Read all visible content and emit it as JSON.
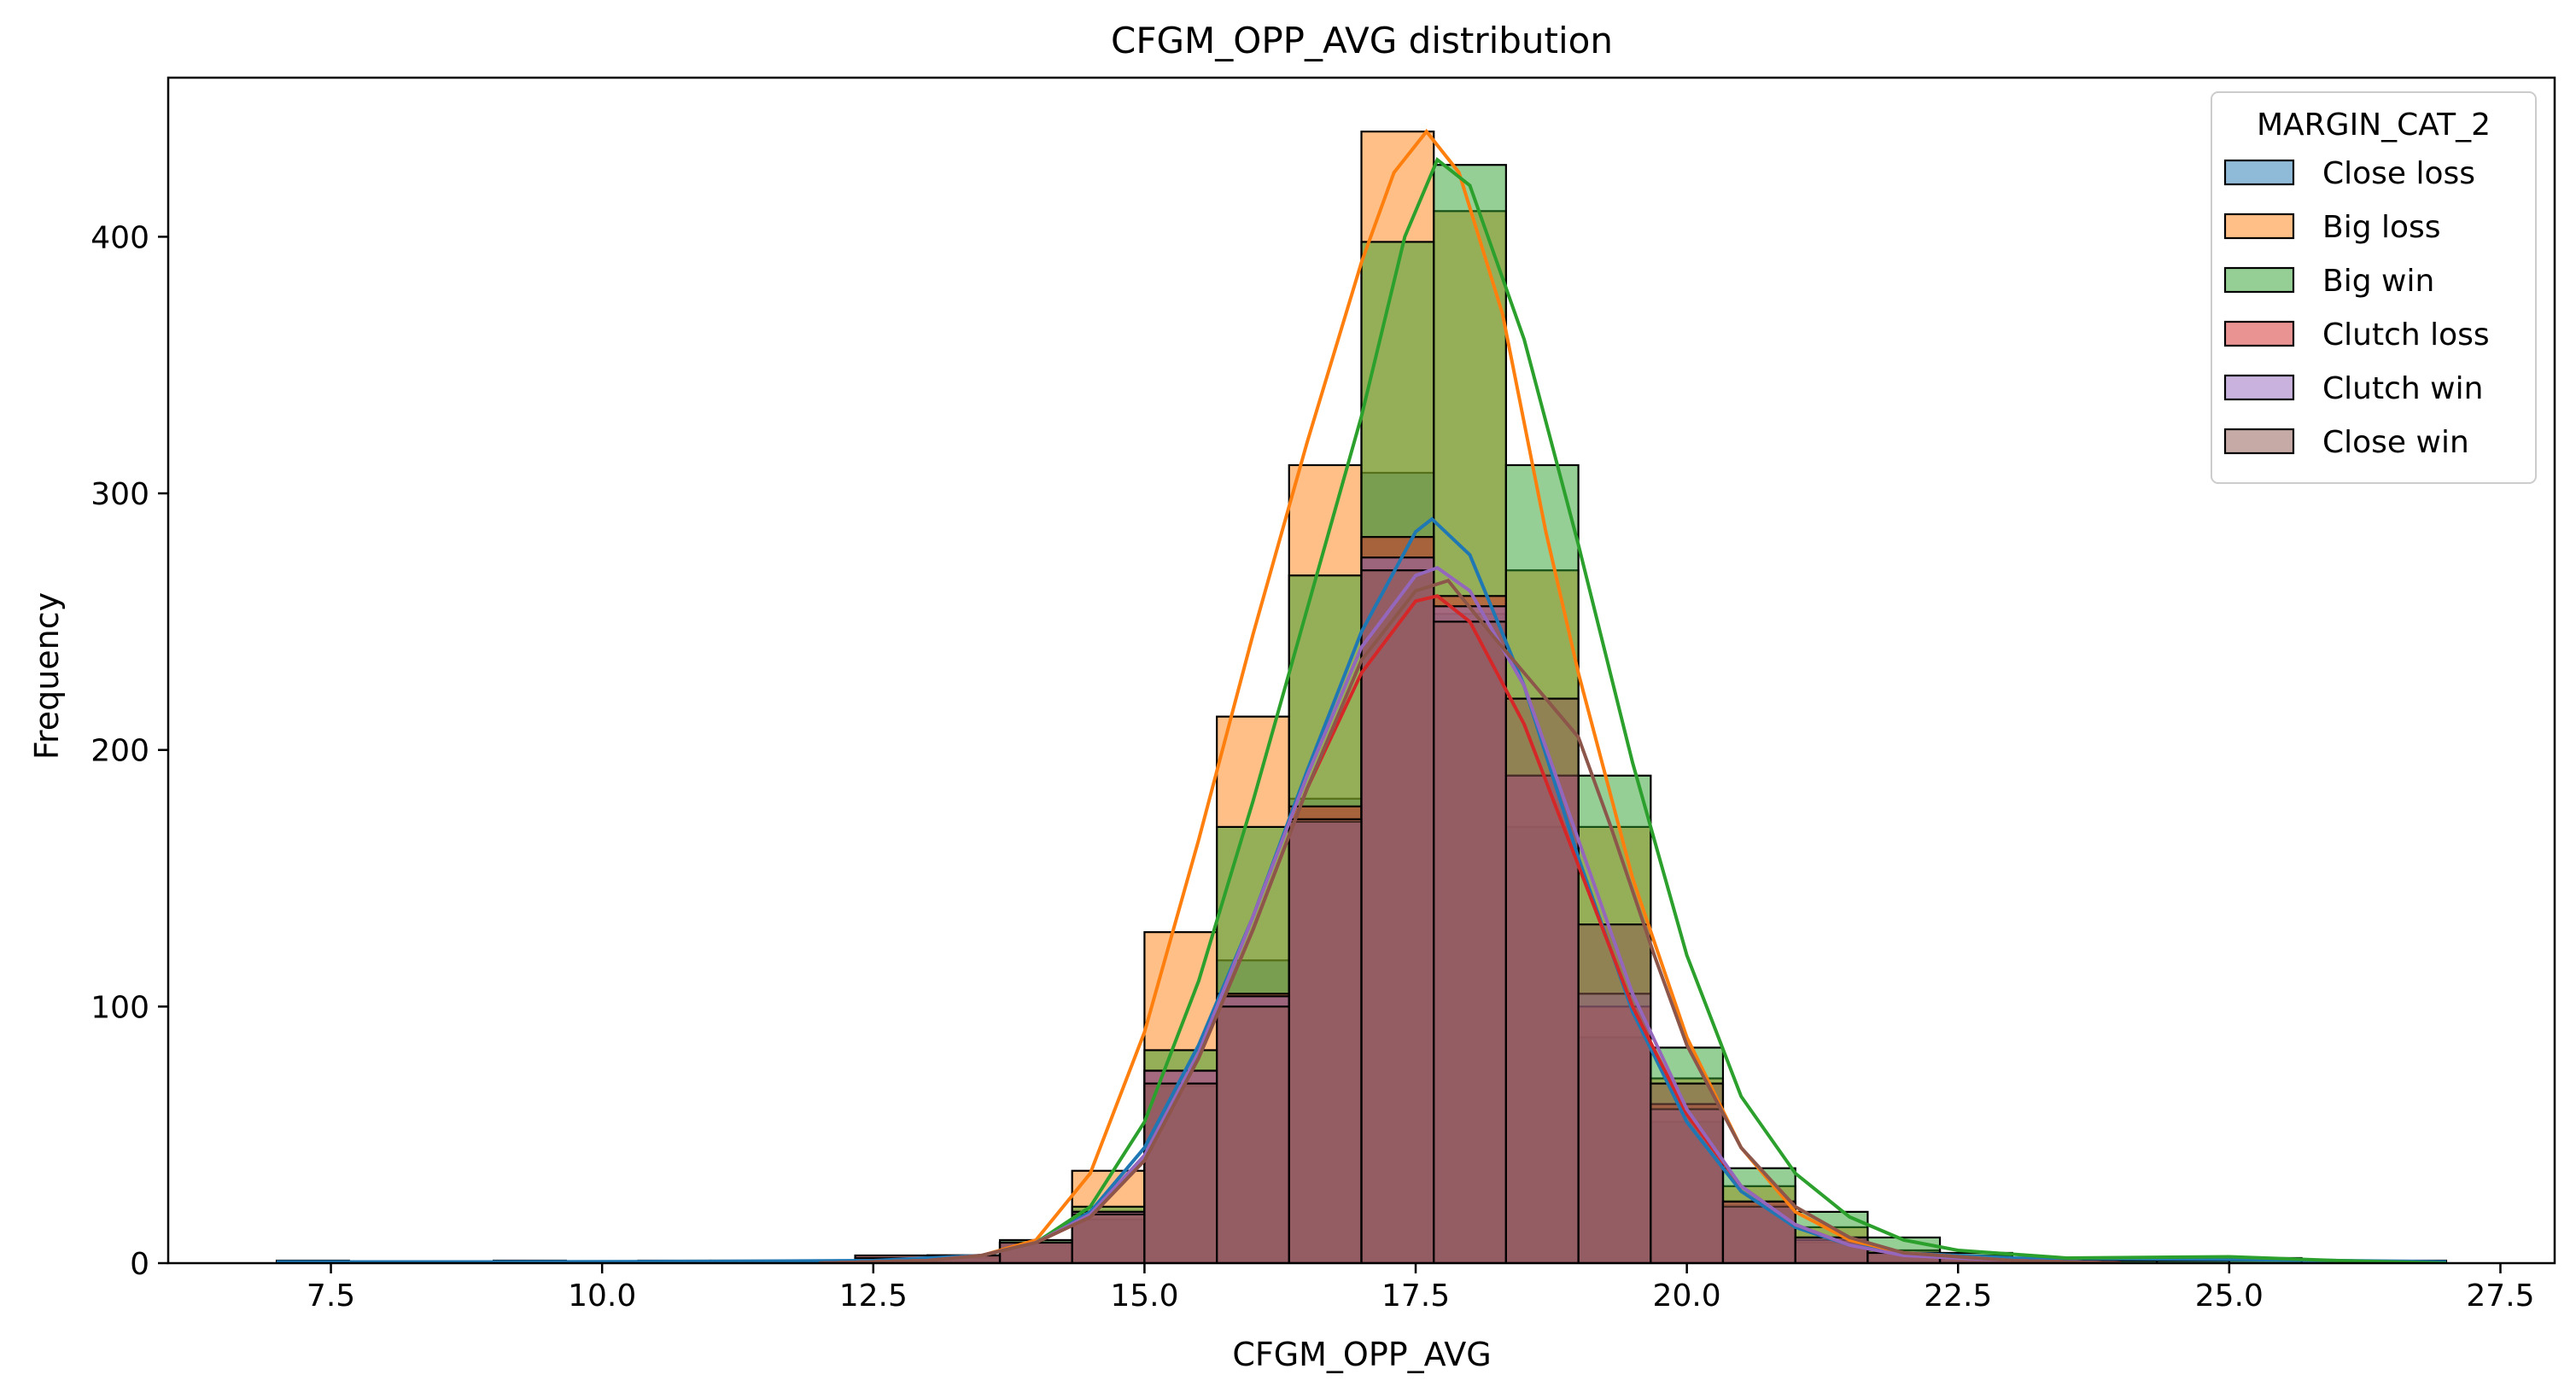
{
  "chart_data": {
    "type": "histogram",
    "title": "CFGM_OPP_AVG distribution",
    "xlabel": "CFGM_OPP_AVG",
    "ylabel": "Frequency",
    "xlim": [
      6.0,
      28.0
    ],
    "ylim": [
      0,
      462
    ],
    "xticks": [
      7.5,
      10.0,
      12.5,
      15.0,
      17.5,
      20.0,
      22.5,
      25.0,
      27.5
    ],
    "xtick_labels": [
      "7.5",
      "10.0",
      "12.5",
      "15.0",
      "17.5",
      "20.0",
      "22.5",
      "25.0",
      "27.5"
    ],
    "yticks": [
      0,
      100,
      200,
      300,
      400
    ],
    "ytick_labels": [
      "0",
      "100",
      "200",
      "300",
      "400"
    ],
    "grid": false,
    "legend": {
      "title": "MARGIN_CAT_2",
      "placement": "top-right"
    },
    "bins": [
      [
        7.0,
        7.667
      ],
      [
        7.667,
        8.333
      ],
      [
        8.333,
        9.0
      ],
      [
        9.0,
        9.667
      ],
      [
        9.667,
        10.333
      ],
      [
        10.333,
        11.0
      ],
      [
        11.0,
        11.667
      ],
      [
        11.667,
        12.333
      ],
      [
        12.333,
        13.0
      ],
      [
        13.0,
        13.667
      ],
      [
        13.667,
        14.333
      ],
      [
        14.333,
        15.0
      ],
      [
        15.0,
        15.667
      ],
      [
        15.667,
        16.333
      ],
      [
        16.333,
        17.0
      ],
      [
        17.0,
        17.667
      ],
      [
        17.667,
        18.333
      ],
      [
        18.333,
        19.0
      ],
      [
        19.0,
        19.667
      ],
      [
        19.667,
        20.333
      ],
      [
        20.333,
        21.0
      ],
      [
        21.0,
        21.667
      ],
      [
        21.667,
        22.333
      ],
      [
        22.333,
        23.0
      ],
      [
        23.0,
        23.667
      ],
      [
        23.667,
        24.333
      ],
      [
        24.333,
        25.0
      ],
      [
        25.0,
        25.667
      ],
      [
        25.667,
        26.333
      ],
      [
        26.333,
        27.0
      ]
    ],
    "series": [
      {
        "name": "Close loss",
        "color": "#1f77b4",
        "values": [
          1,
          0,
          0,
          1,
          0,
          1,
          1,
          1,
          1,
          2,
          8,
          17,
          69,
          118,
          181,
          308,
          253,
          170,
          88,
          55,
          22,
          8,
          4,
          2,
          1,
          1,
          1,
          1,
          1,
          1
        ],
        "kde": [
          [
            7,
            0.5
          ],
          [
            9,
            0.5
          ],
          [
            11,
            0.7
          ],
          [
            12.5,
            1
          ],
          [
            13.5,
            3
          ],
          [
            14,
            8
          ],
          [
            14.5,
            20
          ],
          [
            15,
            45
          ],
          [
            15.5,
            85
          ],
          [
            16,
            135
          ],
          [
            16.5,
            192
          ],
          [
            17,
            246
          ],
          [
            17.5,
            285
          ],
          [
            17.65,
            290
          ],
          [
            18,
            276
          ],
          [
            18.5,
            225
          ],
          [
            19,
            158
          ],
          [
            19.5,
            98
          ],
          [
            20,
            55
          ],
          [
            20.5,
            28
          ],
          [
            21,
            14
          ],
          [
            21.5,
            7
          ],
          [
            22,
            4
          ],
          [
            23,
            2
          ],
          [
            25,
            1.5
          ],
          [
            27,
            0.5
          ]
        ]
      },
      {
        "name": "Big loss",
        "color": "#ff7f0e",
        "values": [
          0,
          0,
          0,
          0,
          0,
          0,
          0,
          1,
          2,
          3,
          8,
          36,
          129,
          213,
          311,
          441,
          410,
          270,
          170,
          72,
          30,
          14,
          5,
          3,
          1,
          0,
          0,
          0,
          0,
          0
        ],
        "kde": [
          [
            12,
            0
          ],
          [
            13,
            1
          ],
          [
            13.5,
            3
          ],
          [
            14,
            9
          ],
          [
            14.5,
            35
          ],
          [
            15,
            90
          ],
          [
            15.5,
            165
          ],
          [
            16,
            245
          ],
          [
            16.5,
            320
          ],
          [
            17,
            390
          ],
          [
            17.3,
            425
          ],
          [
            17.6,
            441
          ],
          [
            17.9,
            425
          ],
          [
            18.3,
            370
          ],
          [
            18.7,
            285
          ],
          [
            19,
            230
          ],
          [
            19.5,
            150
          ],
          [
            20,
            88
          ],
          [
            20.5,
            45
          ],
          [
            21,
            20
          ],
          [
            21.5,
            9
          ],
          [
            22,
            4
          ],
          [
            23,
            1
          ],
          [
            24,
            0
          ]
        ]
      },
      {
        "name": "Big win",
        "color": "#2ca02c",
        "values": [
          0,
          0,
          0,
          0,
          0,
          0,
          0,
          0,
          1,
          3,
          9,
          22,
          83,
          170,
          268,
          398,
          428,
          311,
          190,
          84,
          37,
          20,
          10,
          4,
          2,
          1,
          1,
          2,
          0,
          0
        ],
        "kde": [
          [
            12,
            0
          ],
          [
            13,
            1
          ],
          [
            13.5,
            3
          ],
          [
            14,
            8
          ],
          [
            14.5,
            22
          ],
          [
            15,
            55
          ],
          [
            15.5,
            110
          ],
          [
            16,
            180
          ],
          [
            16.5,
            255
          ],
          [
            17,
            330
          ],
          [
            17.4,
            400
          ],
          [
            17.7,
            430
          ],
          [
            18,
            420
          ],
          [
            18.5,
            360
          ],
          [
            19,
            280
          ],
          [
            19.5,
            195
          ],
          [
            20,
            120
          ],
          [
            20.5,
            65
          ],
          [
            21,
            35
          ],
          [
            21.5,
            18
          ],
          [
            22,
            9
          ],
          [
            22.5,
            5
          ],
          [
            23.5,
            2
          ],
          [
            25,
            2.5
          ],
          [
            26,
            1
          ],
          [
            27,
            0
          ]
        ]
      },
      {
        "name": "Clutch loss",
        "color": "#d62728",
        "values": [
          0,
          0,
          0,
          0,
          0,
          0,
          0,
          1,
          3,
          3,
          8,
          20,
          75,
          105,
          178,
          283,
          260,
          190,
          100,
          62,
          24,
          9,
          4,
          2,
          1,
          0,
          0,
          0,
          0,
          0
        ],
        "kde": [
          [
            12,
            0
          ],
          [
            13,
            1
          ],
          [
            13.5,
            3
          ],
          [
            14,
            8
          ],
          [
            14.5,
            18
          ],
          [
            15,
            40
          ],
          [
            15.5,
            80
          ],
          [
            16,
            130
          ],
          [
            16.5,
            185
          ],
          [
            17,
            230
          ],
          [
            17.5,
            258
          ],
          [
            17.7,
            260
          ],
          [
            18,
            250
          ],
          [
            18.5,
            210
          ],
          [
            19,
            155
          ],
          [
            19.5,
            100
          ],
          [
            20,
            58
          ],
          [
            20.5,
            30
          ],
          [
            21,
            15
          ],
          [
            21.5,
            7
          ],
          [
            22,
            3
          ],
          [
            23,
            1
          ],
          [
            24,
            0
          ]
        ]
      },
      {
        "name": "Clutch win",
        "color": "#9467bd",
        "values": [
          0,
          0,
          0,
          0,
          0,
          0,
          0,
          1,
          2,
          3,
          8,
          20,
          75,
          104,
          172,
          275,
          256,
          190,
          105,
          60,
          22,
          10,
          4,
          2,
          1,
          0,
          0,
          0,
          0,
          0
        ],
        "kde": [
          [
            12,
            0
          ],
          [
            13,
            1
          ],
          [
            13.5,
            3
          ],
          [
            14,
            8
          ],
          [
            14.5,
            19
          ],
          [
            15,
            42
          ],
          [
            15.5,
            82
          ],
          [
            16,
            135
          ],
          [
            16.5,
            190
          ],
          [
            17,
            240
          ],
          [
            17.5,
            268
          ],
          [
            17.7,
            271
          ],
          [
            18,
            262
          ],
          [
            18.5,
            225
          ],
          [
            19,
            165
          ],
          [
            19.5,
            105
          ],
          [
            20,
            60
          ],
          [
            20.5,
            30
          ],
          [
            21,
            15
          ],
          [
            21.5,
            7
          ],
          [
            22,
            3
          ],
          [
            23,
            1
          ],
          [
            24,
            0
          ]
        ]
      },
      {
        "name": "Close win",
        "color": "#8c564b",
        "values": [
          0,
          0,
          0,
          0,
          0,
          0,
          0,
          1,
          2,
          3,
          8,
          19,
          70,
          100,
          173,
          270,
          250,
          220,
          132,
          70,
          24,
          10,
          4,
          2,
          1,
          0,
          0,
          0,
          0,
          0
        ],
        "kde": [
          [
            12,
            0
          ],
          [
            13,
            1
          ],
          [
            13.5,
            3
          ],
          [
            14,
            8
          ],
          [
            14.5,
            18
          ],
          [
            15,
            40
          ],
          [
            15.5,
            80
          ],
          [
            16,
            130
          ],
          [
            16.5,
            185
          ],
          [
            17,
            235
          ],
          [
            17.5,
            262
          ],
          [
            17.8,
            266
          ],
          [
            18.2,
            245
          ],
          [
            18.6,
            225
          ],
          [
            19,
            205
          ],
          [
            19.3,
            170
          ],
          [
            19.7,
            120
          ],
          [
            20,
            85
          ],
          [
            20.5,
            45
          ],
          [
            21,
            22
          ],
          [
            21.5,
            10
          ],
          [
            22,
            4
          ],
          [
            23,
            1
          ],
          [
            24,
            0
          ]
        ]
      }
    ]
  }
}
